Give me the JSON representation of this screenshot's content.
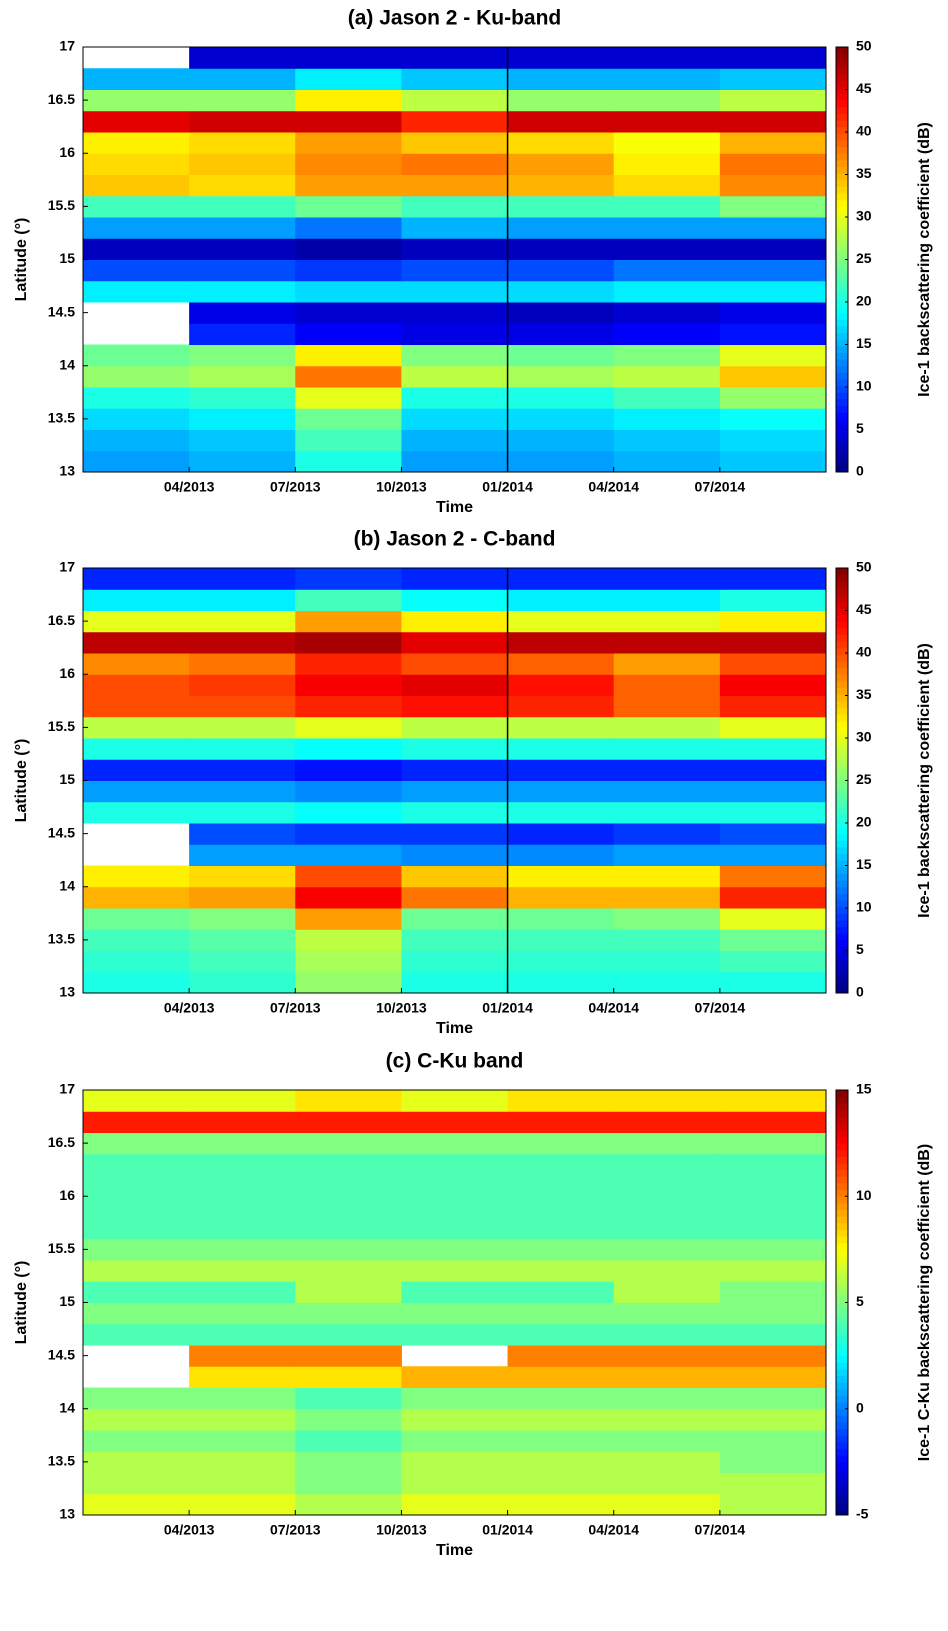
{
  "chart_data": [
    {
      "type": "heatmap",
      "title": "(a) Jason 2 - Ku-band",
      "xlabel": "Time",
      "ylabel": "Latitude (°)",
      "colorbar_label": "Ice-1 backscattering coefficient (dB)",
      "colormap": "jet",
      "vline": "01/2014",
      "x": [
        "01/2013",
        "04/2013",
        "07/2013",
        "10/2013",
        "01/2014",
        "04/2014",
        "07/2014"
      ],
      "y": [
        13,
        13.2,
        13.4,
        13.6,
        13.8,
        14,
        14.2,
        14.4,
        14.6,
        14.8,
        15,
        15.2,
        15.4,
        15.6,
        15.8,
        16,
        16.2,
        16.4,
        16.6,
        16.8
      ],
      "z": [
        [
          14,
          15,
          20,
          14,
          14,
          15,
          16
        ],
        [
          15,
          16,
          22,
          15,
          15,
          16,
          17
        ],
        [
          17,
          18,
          24,
          17,
          17,
          18,
          19
        ],
        [
          20,
          21,
          30,
          20,
          20,
          22,
          26
        ],
        [
          26,
          27,
          38,
          28,
          27,
          28,
          34
        ],
        [
          24,
          25,
          32,
          25,
          24,
          25,
          30
        ],
        [
          null,
          8,
          6,
          5,
          5,
          6,
          7
        ],
        [
          null,
          5,
          4,
          4,
          3,
          4,
          5
        ],
        [
          18,
          18,
          17,
          17,
          17,
          18,
          18
        ],
        [
          10,
          10,
          9,
          10,
          10,
          12,
          12
        ],
        [
          3,
          3,
          2,
          3,
          3,
          3,
          3
        ],
        [
          14,
          14,
          12,
          15,
          14,
          14,
          14
        ],
        [
          22,
          22,
          24,
          22,
          22,
          22,
          25
        ],
        [
          34,
          33,
          36,
          36,
          35,
          33,
          37
        ],
        [
          33,
          34,
          37,
          38,
          36,
          32,
          38
        ],
        [
          32,
          33,
          36,
          34,
          33,
          31,
          35
        ],
        [
          45,
          46,
          46,
          42,
          46,
          46,
          46
        ],
        [
          26,
          26,
          32,
          28,
          26,
          26,
          28
        ],
        [
          15,
          15,
          18,
          16,
          15,
          15,
          16
        ],
        [
          null,
          4,
          4,
          4,
          4,
          4,
          4
        ]
      ],
      "xlim": [
        "01/2013",
        "10/2014"
      ],
      "xticks": [
        "04/2013",
        "07/2013",
        "10/2013",
        "01/2014",
        "04/2014",
        "07/2014"
      ],
      "ylim": [
        13,
        17
      ],
      "yticks": [
        13,
        13.5,
        14,
        14.5,
        15,
        15.5,
        16,
        16.5,
        17
      ],
      "clim": [
        0,
        50
      ],
      "cticks": [
        0,
        5,
        10,
        15,
        20,
        25,
        30,
        35,
        40,
        45,
        50
      ]
    },
    {
      "type": "heatmap",
      "title": "(b) Jason 2 - C-band",
      "xlabel": "Time",
      "ylabel": "Latitude (°)",
      "colorbar_label": "Ice-1 backscattering coefficient (dB)",
      "colormap": "jet",
      "vline": "01/2014",
      "x": [
        "01/2013",
        "04/2013",
        "07/2013",
        "10/2013",
        "01/2014",
        "04/2014",
        "07/2014"
      ],
      "y": [
        13,
        13.2,
        13.4,
        13.6,
        13.8,
        14,
        14.2,
        14.4,
        14.6,
        14.8,
        15,
        15.2,
        15.4,
        15.6,
        15.8,
        16,
        16.2,
        16.4,
        16.6,
        16.8
      ],
      "z": [
        [
          20,
          21,
          26,
          20,
          20,
          20,
          20
        ],
        [
          21,
          22,
          27,
          21,
          21,
          21,
          22
        ],
        [
          22,
          23,
          28,
          22,
          22,
          22,
          24
        ],
        [
          24,
          25,
          36,
          24,
          24,
          25,
          30
        ],
        [
          35,
          36,
          44,
          38,
          35,
          35,
          42
        ],
        [
          32,
          33,
          40,
          34,
          32,
          32,
          38
        ],
        [
          null,
          14,
          14,
          13,
          13,
          14,
          14
        ],
        [
          null,
          10,
          9,
          9,
          8,
          9,
          10
        ],
        [
          20,
          20,
          19,
          20,
          20,
          20,
          20
        ],
        [
          14,
          14,
          13,
          14,
          14,
          14,
          14
        ],
        [
          8,
          8,
          7,
          8,
          8,
          8,
          8
        ],
        [
          20,
          20,
          19,
          20,
          20,
          20,
          20
        ],
        [
          28,
          28,
          30,
          28,
          28,
          28,
          30
        ],
        [
          40,
          40,
          42,
          43,
          42,
          39,
          42
        ],
        [
          40,
          41,
          44,
          45,
          43,
          39,
          44
        ],
        [
          37,
          38,
          42,
          40,
          39,
          36,
          40
        ],
        [
          47,
          47,
          48,
          45,
          47,
          47,
          47
        ],
        [
          30,
          30,
          36,
          32,
          30,
          30,
          32
        ],
        [
          18,
          18,
          22,
          19,
          18,
          18,
          20
        ],
        [
          8,
          8,
          9,
          8,
          8,
          8,
          8
        ]
      ],
      "xlim": [
        "01/2013",
        "10/2014"
      ],
      "xticks": [
        "04/2013",
        "07/2013",
        "10/2013",
        "01/2014",
        "04/2014",
        "07/2014"
      ],
      "ylim": [
        13,
        17
      ],
      "yticks": [
        13,
        13.5,
        14,
        14.5,
        15,
        15.5,
        16,
        16.5,
        17
      ],
      "clim": [
        0,
        50
      ],
      "cticks": [
        0,
        5,
        10,
        15,
        20,
        25,
        30,
        35,
        40,
        45,
        50
      ]
    },
    {
      "type": "heatmap",
      "title": "(c) C-Ku band",
      "xlabel": "Time",
      "ylabel": "Latitude (°)",
      "colorbar_label": "Ice-1 C-Ku backscattering coefficient (dB)",
      "colormap": "jet",
      "x": [
        "01/2013",
        "04/2013",
        "07/2013",
        "10/2013",
        "01/2014",
        "04/2014",
        "07/2014"
      ],
      "y": [
        13,
        13.2,
        13.4,
        13.6,
        13.8,
        14,
        14.2,
        14.4,
        14.6,
        14.8,
        15,
        15.2,
        15.4,
        15.6,
        15.8,
        16,
        16.2,
        16.4,
        16.6,
        16.8
      ],
      "z": [
        [
          7,
          7,
          6,
          7,
          7,
          7,
          6
        ],
        [
          6,
          6,
          5,
          6,
          6,
          6,
          6
        ],
        [
          6,
          6,
          5,
          6,
          6,
          6,
          5
        ],
        [
          5,
          5,
          4,
          5,
          5,
          5,
          5
        ],
        [
          6,
          6,
          5,
          6,
          6,
          6,
          6
        ],
        [
          5,
          5,
          4,
          5,
          5,
          5,
          5
        ],
        [
          null,
          8,
          8,
          9,
          9,
          9,
          9
        ],
        [
          null,
          10,
          10,
          null,
          10,
          10,
          10
        ],
        [
          4,
          4,
          4,
          4,
          4,
          4,
          4
        ],
        [
          5,
          5,
          5,
          5,
          5,
          5,
          5
        ],
        [
          4,
          4,
          6,
          4,
          4,
          6,
          5
        ],
        [
          6,
          6,
          6,
          6,
          6,
          6,
          6
        ],
        [
          5,
          5,
          5,
          5,
          5,
          5,
          5
        ],
        [
          4,
          4,
          4,
          4,
          4,
          4,
          4
        ],
        [
          4,
          4,
          4,
          4,
          4,
          4,
          4
        ],
        [
          4,
          4,
          4,
          4,
          4,
          4,
          4
        ],
        [
          4,
          4,
          4,
          4,
          4,
          4,
          4
        ],
        [
          5,
          5,
          5,
          5,
          5,
          5,
          5
        ],
        [
          12,
          12,
          12,
          12,
          12,
          12,
          12
        ],
        [
          7,
          7,
          8,
          7,
          8,
          8,
          8
        ]
      ],
      "xlim": [
        "01/2013",
        "10/2014"
      ],
      "xticks": [
        "04/2013",
        "07/2013",
        "10/2013",
        "01/2014",
        "04/2014",
        "07/2014"
      ],
      "ylim": [
        13,
        17
      ],
      "yticks": [
        13,
        13.5,
        14,
        14.5,
        15,
        15.5,
        16,
        16.5,
        17
      ],
      "clim": [
        -5,
        15
      ],
      "cticks": [
        -5,
        0,
        5,
        10,
        15
      ]
    }
  ]
}
